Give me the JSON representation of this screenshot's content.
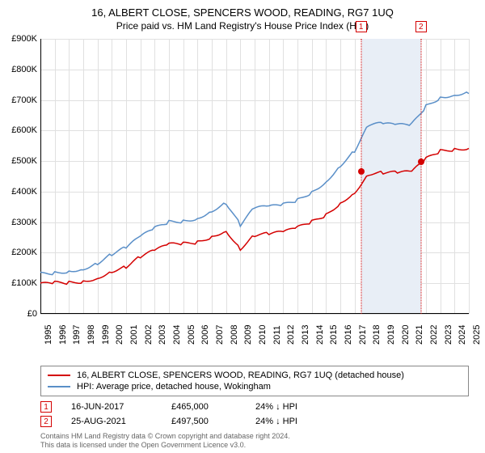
{
  "title": "16, ALBERT CLOSE, SPENCERS WOOD, READING, RG7 1UQ",
  "subtitle": "Price paid vs. HM Land Registry's House Price Index (HPI)",
  "chart": {
    "type": "line",
    "background_color": "#ffffff",
    "grid_color": "#e0e0e0",
    "axis_color": "#000000",
    "ylim": [
      0,
      900000
    ],
    "ytick_step": 100000,
    "yticks": [
      "£0",
      "£100K",
      "£200K",
      "£300K",
      "£400K",
      "£500K",
      "£600K",
      "£700K",
      "£800K",
      "£900K"
    ],
    "xticks": [
      "1995",
      "1996",
      "1997",
      "1998",
      "1999",
      "2000",
      "2001",
      "2002",
      "2003",
      "2004",
      "2005",
      "2006",
      "2007",
      "2008",
      "2009",
      "2010",
      "2011",
      "2012",
      "2013",
      "2014",
      "2015",
      "2016",
      "2017",
      "2018",
      "2019",
      "2020",
      "2021",
      "2022",
      "2023",
      "2024",
      "2025"
    ],
    "xtick_fontsize": 11,
    "ytick_fontsize": 11,
    "series": {
      "price_paid": {
        "label": "16, ALBERT CLOSE, SPENCERS WOOD, READING, RG7 1UQ (detached house)",
        "color": "#d40000",
        "line_width": 1.5,
        "values": [
          95,
          100,
          102,
          108,
          120,
          142,
          155,
          185,
          205,
          225,
          228,
          235,
          255,
          275,
          215,
          258,
          260,
          265,
          280,
          300,
          325,
          365,
          400,
          460,
          462,
          460,
          462,
          505,
          532,
          540,
          545
        ]
      },
      "hpi": {
        "label": "HPI: Average price, detached house, Wokingham",
        "color": "#5a8fc8",
        "line_width": 1.5,
        "values": [
          130,
          135,
          142,
          150,
          168,
          195,
          215,
          250,
          278,
          300,
          305,
          315,
          340,
          365,
          290,
          345,
          348,
          355,
          372,
          400,
          435,
          488,
          535,
          618,
          620,
          615,
          618,
          680,
          710,
          720,
          728
        ]
      }
    },
    "highlight_band": {
      "start_year": 2017.45,
      "end_year": 2021.65,
      "color": "#e8eef6"
    },
    "event_markers": [
      {
        "n": "1",
        "year": 2017.45,
        "price": 465000,
        "line_color": "#d40000",
        "box_border": "#d40000",
        "dot_color": "#d40000"
      },
      {
        "n": "2",
        "year": 2021.65,
        "price": 497500,
        "line_color": "#d40000",
        "box_border": "#d40000",
        "dot_color": "#d40000"
      }
    ]
  },
  "legend": {
    "items": [
      {
        "color": "#d40000",
        "label_path": "chart.series.price_paid.label"
      },
      {
        "color": "#5a8fc8",
        "label_path": "chart.series.hpi.label"
      }
    ]
  },
  "events": [
    {
      "n": "1",
      "box_border": "#d40000",
      "date": "16-JUN-2017",
      "price": "£465,000",
      "delta": "24% ↓ HPI"
    },
    {
      "n": "2",
      "box_border": "#d40000",
      "date": "25-AUG-2021",
      "price": "£497,500",
      "delta": "24% ↓ HPI"
    }
  ],
  "attribution": {
    "line1": "Contains HM Land Registry data © Crown copyright and database right 2024.",
    "line2": "This data is licensed under the Open Government Licence v3.0."
  }
}
